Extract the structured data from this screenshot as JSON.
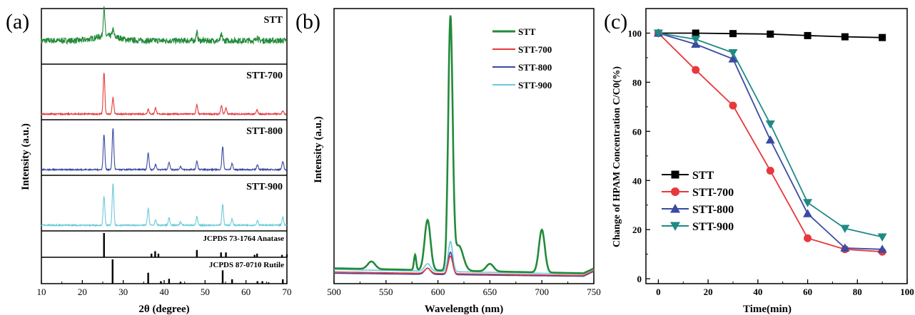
{
  "chart_data": [
    {
      "panel": "(a)",
      "type": "line",
      "xlabel": "2θ (degree)",
      "ylabel": "Intensity (a.u.)",
      "xlim": [
        10,
        70
      ],
      "xticks": [
        10,
        20,
        30,
        40,
        50,
        60,
        70
      ],
      "series": [
        {
          "name": "STT",
          "color": "#238a3a",
          "peaks": [
            {
              "x": 25.3,
              "h": 1.0
            },
            {
              "x": 27.5,
              "h": 0.25
            },
            {
              "x": 48.0,
              "h": 0.3
            },
            {
              "x": 54.0,
              "h": 0.2
            },
            {
              "x": 62.7,
              "h": 0.15
            }
          ],
          "noise": 0.22,
          "broad": true
        },
        {
          "name": "STT-700",
          "color": "#e8383c",
          "peaks": [
            {
              "x": 25.3,
              "h": 1.0
            },
            {
              "x": 27.5,
              "h": 0.4
            },
            {
              "x": 36.1,
              "h": 0.12
            },
            {
              "x": 37.9,
              "h": 0.15
            },
            {
              "x": 48.0,
              "h": 0.22
            },
            {
              "x": 54.0,
              "h": 0.2
            },
            {
              "x": 55.1,
              "h": 0.15
            },
            {
              "x": 62.7,
              "h": 0.1
            },
            {
              "x": 69.0,
              "h": 0.08
            }
          ],
          "noise": 0.03
        },
        {
          "name": "STT-800",
          "color": "#3b4aa3",
          "peaks": [
            {
              "x": 25.3,
              "h": 0.85
            },
            {
              "x": 27.5,
              "h": 1.0
            },
            {
              "x": 36.1,
              "h": 0.4
            },
            {
              "x": 37.9,
              "h": 0.12
            },
            {
              "x": 41.2,
              "h": 0.18
            },
            {
              "x": 44.0,
              "h": 0.08
            },
            {
              "x": 48.0,
              "h": 0.2
            },
            {
              "x": 54.3,
              "h": 0.55
            },
            {
              "x": 56.6,
              "h": 0.15
            },
            {
              "x": 62.8,
              "h": 0.12
            },
            {
              "x": 69.0,
              "h": 0.2
            }
          ],
          "noise": 0.03
        },
        {
          "name": "STT-900",
          "color": "#6ccad9",
          "peaks": [
            {
              "x": 25.3,
              "h": 0.7
            },
            {
              "x": 27.5,
              "h": 1.0
            },
            {
              "x": 36.1,
              "h": 0.4
            },
            {
              "x": 37.9,
              "h": 0.12
            },
            {
              "x": 41.2,
              "h": 0.18
            },
            {
              "x": 44.0,
              "h": 0.08
            },
            {
              "x": 48.0,
              "h": 0.2
            },
            {
              "x": 54.3,
              "h": 0.5
            },
            {
              "x": 56.6,
              "h": 0.15
            },
            {
              "x": 62.8,
              "h": 0.12
            },
            {
              "x": 69.0,
              "h": 0.2
            }
          ],
          "noise": 0.03
        }
      ],
      "references": [
        {
          "label": "JCPDS 73-1764 Anatase",
          "lines": [
            {
              "x": 25.3,
              "h": 1.0
            },
            {
              "x": 36.9,
              "h": 0.15
            },
            {
              "x": 37.8,
              "h": 0.25
            },
            {
              "x": 38.6,
              "h": 0.15
            },
            {
              "x": 48.0,
              "h": 0.3
            },
            {
              "x": 53.9,
              "h": 0.2
            },
            {
              "x": 55.1,
              "h": 0.2
            },
            {
              "x": 62.1,
              "h": 0.1
            },
            {
              "x": 62.7,
              "h": 0.15
            },
            {
              "x": 68.8,
              "h": 0.1
            },
            {
              "x": 70.0,
              "h": 0.12
            }
          ]
        },
        {
          "label": "JCPDS 87-0710 Rutile",
          "lines": [
            {
              "x": 27.4,
              "h": 1.0
            },
            {
              "x": 36.1,
              "h": 0.45
            },
            {
              "x": 39.2,
              "h": 0.1
            },
            {
              "x": 41.2,
              "h": 0.2
            },
            {
              "x": 44.0,
              "h": 0.08
            },
            {
              "x": 54.3,
              "h": 0.55
            },
            {
              "x": 56.6,
              "h": 0.18
            },
            {
              "x": 62.8,
              "h": 0.1
            },
            {
              "x": 64.0,
              "h": 0.1
            },
            {
              "x": 65.5,
              "h": 0.05
            },
            {
              "x": 69.0,
              "h": 0.18
            }
          ]
        }
      ]
    },
    {
      "panel": "(b)",
      "type": "line",
      "xlabel": "Wavelength (nm)",
      "ylabel": "Intensity (a.u.)",
      "xlim": [
        500,
        750
      ],
      "xticks": [
        500,
        550,
        600,
        650,
        700,
        750
      ],
      "legend": "top-right",
      "series": [
        {
          "name": "STT",
          "color": "#238a3a",
          "base": 0.05,
          "peaks": [
            {
              "x": 536,
              "h": 0.03,
              "w": 5
            },
            {
              "x": 578,
              "h": 0.06,
              "w": 1.5
            },
            {
              "x": 590,
              "h": 0.2,
              "w": 4
            },
            {
              "x": 612,
              "h": 1.0,
              "w": 3
            },
            {
              "x": 620,
              "h": 0.1,
              "w": 6
            },
            {
              "x": 650,
              "h": 0.03,
              "w": 5
            },
            {
              "x": 700,
              "h": 0.17,
              "w": 4
            }
          ]
        },
        {
          "name": "STT-700",
          "color": "#e8383c",
          "base": 0.035,
          "peaks": [
            {
              "x": 590,
              "h": 0.02,
              "w": 4
            },
            {
              "x": 612,
              "h": 0.07,
              "w": 3
            }
          ]
        },
        {
          "name": "STT-800",
          "color": "#3b4aa3",
          "base": 0.03,
          "peaks": [
            {
              "x": 590,
              "h": 0.025,
              "w": 4
            },
            {
              "x": 612,
              "h": 0.09,
              "w": 3
            }
          ]
        },
        {
          "name": "STT-900",
          "color": "#6ccad9",
          "base": 0.045,
          "peaks": [
            {
              "x": 590,
              "h": 0.03,
              "w": 4
            },
            {
              "x": 612,
              "h": 0.12,
              "w": 3
            }
          ]
        }
      ]
    },
    {
      "panel": "(c)",
      "type": "line",
      "xlabel": "Time(min)",
      "ylabel": "Change of HPAM Concentration C/C0(%)",
      "xlim": [
        -5,
        100
      ],
      "ylim": [
        -2,
        110
      ],
      "xticks": [
        0,
        20,
        40,
        60,
        80,
        100
      ],
      "yticks": [
        0,
        20,
        40,
        60,
        80,
        100
      ],
      "legend": "bottom-left",
      "x": [
        0,
        15,
        30,
        45,
        60,
        75,
        90
      ],
      "series": [
        {
          "name": "STT",
          "color": "#000000",
          "marker": "square",
          "values": [
            100,
            100,
            99.8,
            99.6,
            99,
            98.5,
            98.2
          ]
        },
        {
          "name": "STT-700",
          "color": "#e8383c",
          "marker": "circle",
          "values": [
            100,
            85,
            70.5,
            44,
            16.5,
            12,
            11
          ]
        },
        {
          "name": "STT-800",
          "color": "#3b4aa3",
          "marker": "triangle-up",
          "values": [
            100,
            95.5,
            89.5,
            56.5,
            26.5,
            12.5,
            12
          ]
        },
        {
          "name": "STT-900",
          "color": "#1f8a84",
          "marker": "triangle-down",
          "values": [
            100,
            97.5,
            92,
            63,
            31,
            20.5,
            17
          ]
        }
      ]
    }
  ]
}
